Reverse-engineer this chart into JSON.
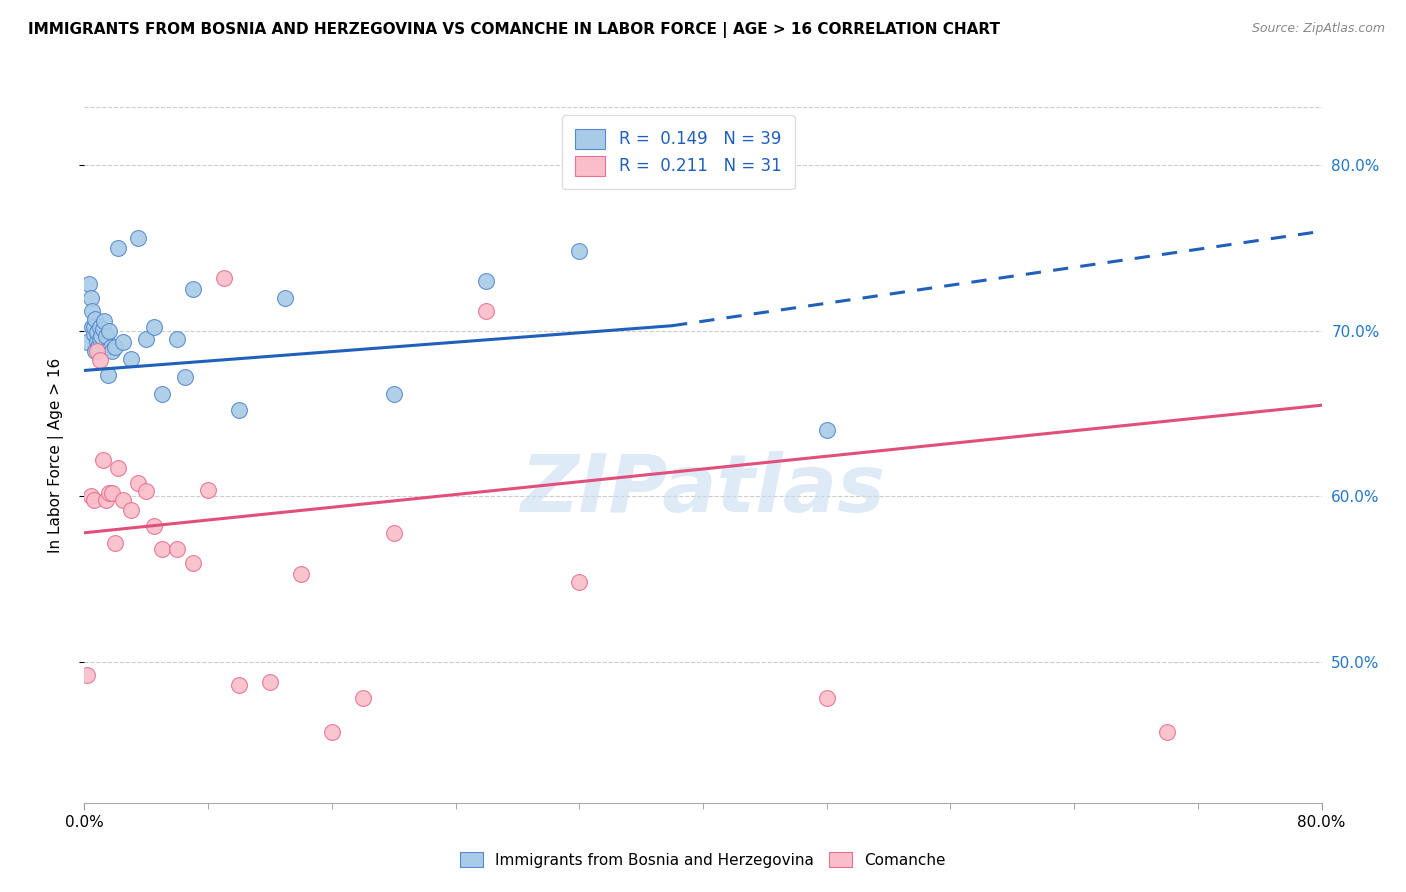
{
  "title": "IMMIGRANTS FROM BOSNIA AND HERZEGOVINA VS COMANCHE IN LABOR FORCE | AGE > 16 CORRELATION CHART",
  "source": "Source: ZipAtlas.com",
  "ylabel": "In Labor Force | Age > 16",
  "right_ytick_labels": [
    "50.0%",
    "60.0%",
    "70.0%",
    "80.0%"
  ],
  "right_ytick_values": [
    0.5,
    0.6,
    0.7,
    0.8
  ],
  "xlim": [
    0.0,
    0.8
  ],
  "ylim": [
    0.415,
    0.835
  ],
  "xtick_labels": [
    "0.0%",
    "80.0%"
  ],
  "legend_r_blue": "0.149",
  "legend_n_blue": "39",
  "legend_r_pink": "0.211",
  "legend_n_pink": "31",
  "blue_color": "#A8CBE8",
  "pink_color": "#F9BEC9",
  "blue_edge_color": "#5588CC",
  "pink_edge_color": "#E87090",
  "blue_line_color": "#2060BB",
  "pink_line_color": "#E0507A",
  "watermark": "ZIPatlas",
  "blue_scatter_x": [
    0.002,
    0.003,
    0.004,
    0.005,
    0.005,
    0.006,
    0.006,
    0.007,
    0.007,
    0.008,
    0.008,
    0.009,
    0.01,
    0.01,
    0.011,
    0.012,
    0.013,
    0.014,
    0.015,
    0.016,
    0.017,
    0.018,
    0.02,
    0.022,
    0.025,
    0.03,
    0.035,
    0.04,
    0.045,
    0.05,
    0.06,
    0.065,
    0.07,
    0.1,
    0.13,
    0.2,
    0.26,
    0.32,
    0.48
  ],
  "blue_scatter_y": [
    0.693,
    0.728,
    0.72,
    0.712,
    0.702,
    0.698,
    0.702,
    0.707,
    0.688,
    0.694,
    0.699,
    0.69,
    0.702,
    0.695,
    0.697,
    0.701,
    0.706,
    0.697,
    0.673,
    0.7,
    0.69,
    0.688,
    0.69,
    0.75,
    0.693,
    0.683,
    0.756,
    0.695,
    0.702,
    0.662,
    0.695,
    0.672,
    0.725,
    0.652,
    0.72,
    0.662,
    0.73,
    0.748,
    0.64
  ],
  "pink_scatter_x": [
    0.002,
    0.004,
    0.006,
    0.008,
    0.01,
    0.012,
    0.014,
    0.016,
    0.018,
    0.02,
    0.022,
    0.025,
    0.03,
    0.035,
    0.04,
    0.045,
    0.05,
    0.06,
    0.07,
    0.08,
    0.09,
    0.1,
    0.12,
    0.14,
    0.16,
    0.18,
    0.2,
    0.26,
    0.32,
    0.48,
    0.7
  ],
  "pink_scatter_y": [
    0.492,
    0.6,
    0.598,
    0.688,
    0.682,
    0.622,
    0.598,
    0.602,
    0.602,
    0.572,
    0.617,
    0.598,
    0.592,
    0.608,
    0.603,
    0.582,
    0.568,
    0.568,
    0.56,
    0.604,
    0.732,
    0.486,
    0.488,
    0.553,
    0.458,
    0.478,
    0.578,
    0.712,
    0.548,
    0.478,
    0.458
  ],
  "blue_line_x0": 0.0,
  "blue_line_x_break": 0.38,
  "blue_line_x1": 0.8,
  "blue_line_y0": 0.676,
  "blue_line_y_break": 0.703,
  "blue_line_y1": 0.76,
  "pink_line_x0": 0.0,
  "pink_line_x1": 0.8,
  "pink_line_y0": 0.578,
  "pink_line_y1": 0.655
}
